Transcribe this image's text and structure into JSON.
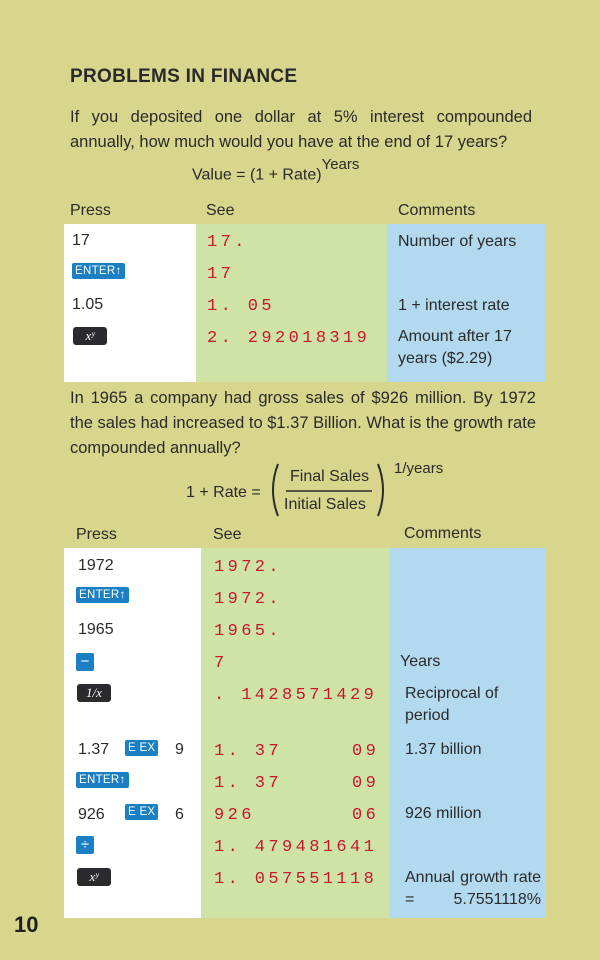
{
  "title": "PROBLEMS IN FINANCE",
  "problem1": {
    "text": "If you deposited one dollar at 5% interest compounded annually, how much would you have at the end of 17 years?",
    "formula_left": "Value = (1 + Rate)",
    "formula_exp": "Years",
    "headers": {
      "press": "Press",
      "see": "See",
      "comments": "Comments"
    },
    "rows": [
      {
        "press": "17",
        "see": "17.",
        "comment": "Number of years"
      },
      {
        "press_key": "ENTER↑",
        "see": "17",
        "comment": ""
      },
      {
        "press": "1.05",
        "see": "1. 05",
        "comment": "1 + interest rate"
      },
      {
        "press_key": "xʸ",
        "see": "2. 292018319",
        "comment": "Amount after 17 years ($2.29)"
      }
    ]
  },
  "problem2": {
    "text": "In 1965 a company had gross sales of $926 million. By 1972 the sales had increased to $1.37 Billion. What is the growth rate compounded annually?",
    "formula_left": "1 + Rate =",
    "numerator": "Final Sales",
    "denominator": "Initial Sales",
    "exponent": "1/years",
    "headers": {
      "press": "Press",
      "see": "See",
      "comments": "Comments"
    },
    "rows": [
      {
        "press": "1972",
        "see": "1972.",
        "comment": ""
      },
      {
        "press_key": "ENTER↑",
        "see": "1972.",
        "comment": ""
      },
      {
        "press": "1965",
        "see": "1965.",
        "comment": ""
      },
      {
        "press_key": "−",
        "see": "7",
        "comment": "Years"
      },
      {
        "press_key": "1/x",
        "see": ". 1428571429",
        "comment": "Reciprocal of period"
      },
      {
        "press": "1.37",
        "press_key": "E EX",
        "press_after": "9",
        "see": "1. 37",
        "see_exp": "09",
        "comment": "1.37 billion"
      },
      {
        "press_key": "ENTER↑",
        "see": "1. 37",
        "see_exp": "09",
        "comment": ""
      },
      {
        "press": "926",
        "press_key": "E EX",
        "press_after": "6",
        "see": "926",
        "see_exp": "06",
        "comment": "926 million"
      },
      {
        "press_key": "÷",
        "see": "1. 479481641",
        "comment": ""
      },
      {
        "press_key": "xʸ",
        "see": "1. 057551118",
        "comment": "Annual growth rate = 5.7551118%"
      }
    ]
  },
  "page_number": "10"
}
